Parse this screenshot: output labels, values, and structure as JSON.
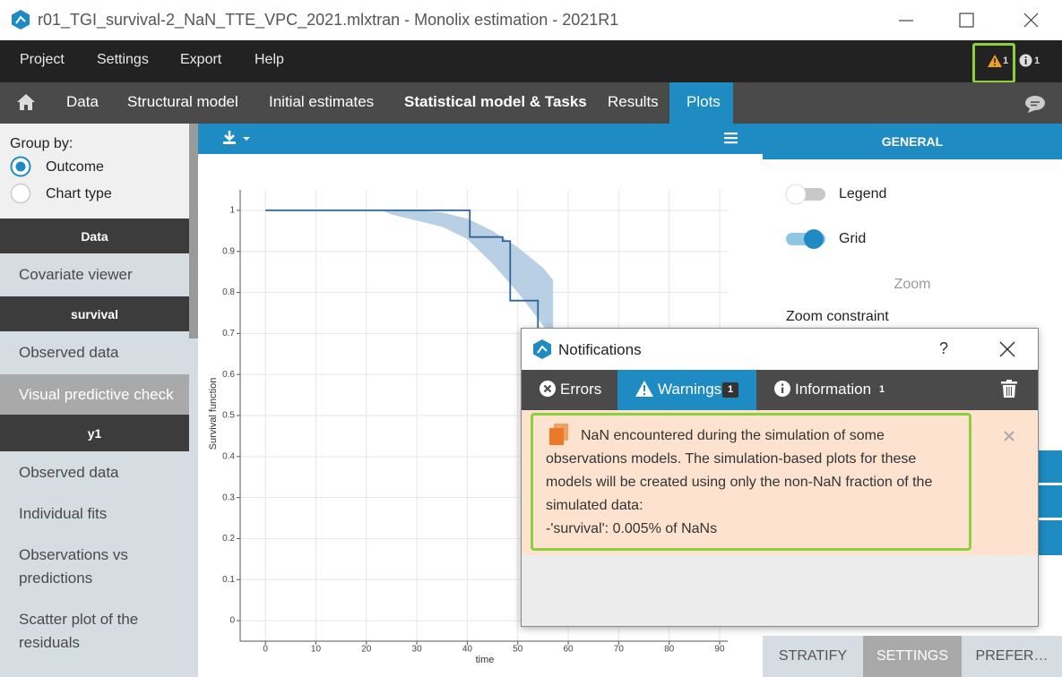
{
  "window": {
    "title": "r01_TGI_survival-2_NaN_TTE_VPC_2021.mlxtran - Monolix estimation - 2021R1"
  },
  "menu": {
    "items": [
      "Project",
      "Settings",
      "Export",
      "Help"
    ],
    "warning_count": 1,
    "info_count": 1
  },
  "tabs": [
    "Data",
    "Structural model",
    "Initial estimates",
    "Statistical model & Tasks",
    "Results",
    "Plots"
  ],
  "sidebar": {
    "group_by_label": "Group by:",
    "options": [
      "Outcome",
      "Chart type"
    ],
    "sections": [
      {
        "header": "Data",
        "items": [
          "Covariate viewer"
        ]
      },
      {
        "header": "survival",
        "items": [
          "Observed data",
          "Visual predictive check"
        ]
      },
      {
        "header": "y1",
        "items": [
          "Observed data",
          "Individual fits",
          "Observations vs predictions",
          "Scatter plot of the residuals"
        ]
      }
    ]
  },
  "chart_data": {
    "type": "line",
    "x_label": "time",
    "y_label": "Survival function",
    "xlim": [
      -5,
      91.6
    ],
    "ylim": [
      -0.05,
      1.05
    ],
    "xticks": [
      0,
      10,
      20,
      30,
      40,
      50,
      60,
      70,
      80,
      90
    ],
    "yticks": [
      0,
      0.1,
      0.2,
      0.3,
      0.4,
      0.5,
      0.6,
      0.7,
      0.8,
      0.9,
      1
    ],
    "grid": true,
    "band": {
      "color": "#b8cfe4",
      "x": [
        23,
        25,
        30,
        35,
        40,
        45,
        50,
        55,
        57
      ],
      "lower": [
        1,
        0.99,
        0.975,
        0.96,
        0.93,
        0.87,
        0.8,
        0.72,
        0.68
      ],
      "upper": [
        1,
        1,
        1,
        0.995,
        0.98,
        0.95,
        0.91,
        0.86,
        0.83
      ]
    },
    "series": [
      {
        "color": "#2f6496",
        "x": [
          0,
          40.5,
          40.5,
          47,
          47,
          48.5,
          48.5,
          54,
          54
        ],
        "values": [
          1,
          1,
          0.935,
          0.935,
          0.925,
          0.925,
          0.78,
          0.78,
          0.7
        ]
      }
    ]
  },
  "right_panel": {
    "header": "GENERAL",
    "legend": "Legend",
    "grid": "Grid",
    "zoom": "Zoom",
    "zoom_constraint": "Zoom constraint",
    "bottom_tabs": [
      "STRATIFY",
      "SETTINGS",
      "PREFER…"
    ]
  },
  "dialog": {
    "title": "Notifications",
    "help": "?",
    "tabs": {
      "errors": "Errors",
      "warnings": "Warnings",
      "warnings_count": 1,
      "information": "Information",
      "information_count": 1
    },
    "message": "NaN encountered during the simulation of some observations models. The simulation-based plots for these models will be created using only the non-NaN fraction of the simulated data:",
    "detail": "-'survival': 0.005% of NaNs"
  }
}
